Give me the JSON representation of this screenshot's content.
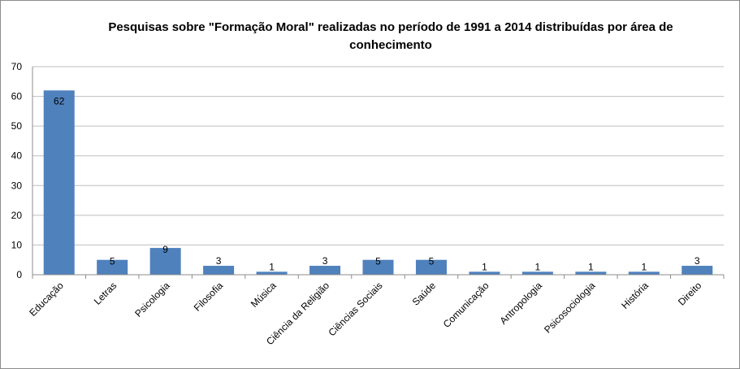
{
  "chart_data": {
    "type": "bar",
    "title": "Pesquisas sobre \"Formação Moral\" realizadas no período de 1991 a 2014 distribuídas por área de conhecimento",
    "categories": [
      "Educação",
      "Letras",
      "Psicologia",
      "Filosofia",
      "Música",
      "Ciência da Religião",
      "Ciências Sociais",
      "Saúde",
      "Comunicação",
      "Antropologia",
      "Psicosociologia",
      "História",
      "Direito"
    ],
    "values": [
      62,
      5,
      9,
      3,
      1,
      3,
      5,
      5,
      1,
      1,
      1,
      1,
      3
    ],
    "data_labels": [
      "62",
      "5",
      "9",
      "3",
      "1",
      "3",
      "5",
      "5",
      "1",
      "1",
      "1",
      "1",
      "3"
    ],
    "y_ticks": [
      "0",
      "10",
      "20",
      "30",
      "40",
      "50",
      "60",
      "70"
    ],
    "ylim": [
      0,
      70
    ],
    "grid": true,
    "legend": "none",
    "bar_color": "#4f81bd",
    "grid_color": "#bfbfbf"
  }
}
